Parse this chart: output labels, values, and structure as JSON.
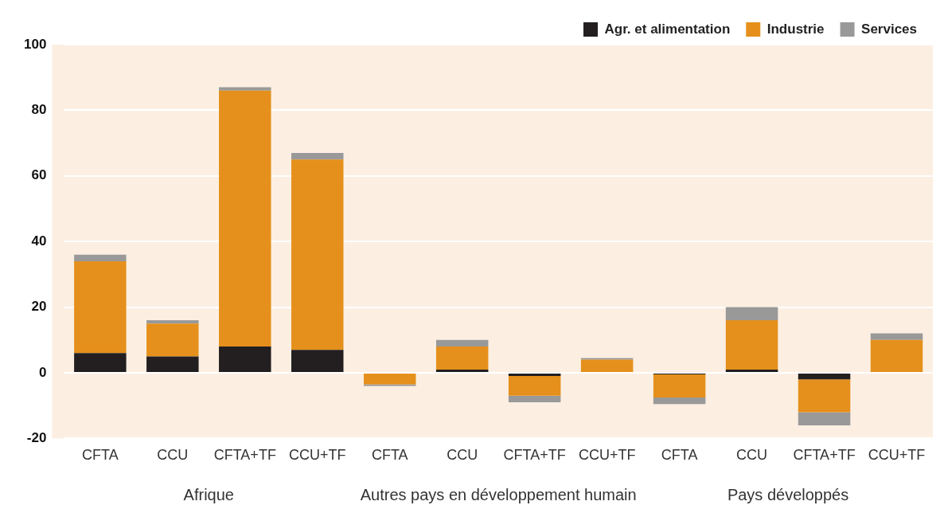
{
  "chart_data": {
    "type": "bar",
    "stacked": true,
    "categories": [
      "CFTA",
      "CCU",
      "CFTA+TF",
      "CCU+TF",
      "CFTA",
      "CCU",
      "CFTA+TF",
      "CCU+TF",
      "CFTA",
      "CCU",
      "CFTA+TF",
      "CCU+TF"
    ],
    "series": [
      {
        "name": "Agr. et alimentation",
        "color": "#231f20",
        "values": [
          6,
          5,
          8,
          7,
          0,
          1,
          -1,
          0,
          -0.5,
          1,
          -2,
          0
        ]
      },
      {
        "name": "Industrie",
        "color": "#e5901c",
        "values": [
          28,
          10,
          78,
          58,
          -3.5,
          7,
          -6,
          4,
          -7,
          15,
          -10,
          10
        ]
      },
      {
        "name": "Services",
        "color": "#999999",
        "values": [
          2,
          1,
          1,
          2,
          -0.5,
          2,
          -2,
          0.5,
          -2,
          4,
          -4,
          2
        ]
      }
    ],
    "annotations": [
      "Afrique",
      "Autres pays en développement humain",
      "Pays développés"
    ],
    "ylim": [
      -20,
      100
    ],
    "yticks": [
      -20,
      0,
      20,
      40,
      60,
      80,
      100
    ],
    "grid": "y",
    "legend": "top right"
  }
}
